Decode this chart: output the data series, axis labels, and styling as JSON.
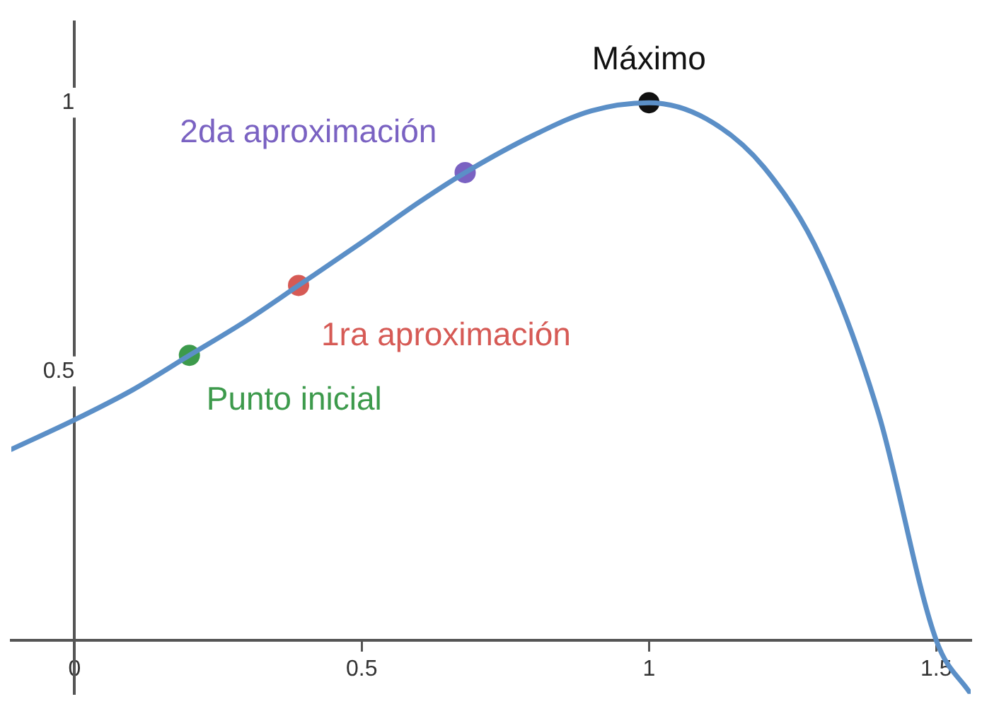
{
  "chart_data": {
    "type": "line",
    "xlim": [
      -0.11,
      1.56
    ],
    "ylim": [
      -0.1,
      1.15
    ],
    "xticks": [
      0,
      0.5,
      1,
      1.5
    ],
    "yticks": [
      0.5,
      1
    ],
    "grid": false,
    "legend": false,
    "series": [
      {
        "color": "#5b8fc7",
        "x": [
          -0.11,
          0,
          0.1,
          0.2,
          0.3,
          0.39,
          0.5,
          0.6,
          0.68,
          0.8,
          0.9,
          1.0,
          1.1,
          1.2,
          1.3,
          1.4,
          1.5,
          1.56
        ],
        "values": [
          0.355,
          0.41,
          0.465,
          0.53,
          0.595,
          0.66,
          0.74,
          0.815,
          0.87,
          0.94,
          0.985,
          1.0,
          0.97,
          0.88,
          0.71,
          0.42,
          0.0,
          -0.1
        ]
      },
      {
        "type": "scatter",
        "name": "Punto inicial",
        "color": "#3d9a4c",
        "x": [
          0.2
        ],
        "values": [
          0.53
        ]
      },
      {
        "type": "scatter",
        "name": "1ra aproximación",
        "color": "#d65a55",
        "x": [
          0.39
        ],
        "values": [
          0.66
        ]
      },
      {
        "type": "scatter",
        "name": "2da aproximación",
        "color": "#7a62c2",
        "x": [
          0.68
        ],
        "values": [
          0.87
        ]
      },
      {
        "type": "scatter",
        "name": "Máximo",
        "color": "#111111",
        "x": [
          1.0
        ],
        "values": [
          1.0
        ]
      }
    ]
  }
}
